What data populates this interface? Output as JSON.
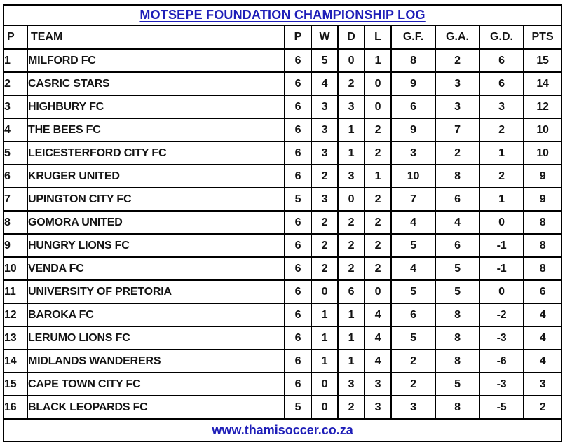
{
  "title": "MOTSEPE FOUNDATION CHAMPIONSHIP LOG",
  "footer": {
    "url_text": "www.thamisoccer.co.za"
  },
  "colors": {
    "accent": "#1e1eb8",
    "border": "#000000",
    "text": "#131313",
    "background": "#ffffff"
  },
  "chart_data": {
    "type": "table",
    "title": "MOTSEPE FOUNDATION CHAMPIONSHIP LOG",
    "columns": [
      "P",
      "TEAM",
      "P",
      "W",
      "D",
      "L",
      "G.F.",
      "G.A.",
      "G.D.",
      "PTS"
    ],
    "column_keys": [
      "pos",
      "team",
      "played",
      "won",
      "drawn",
      "lost",
      "gf",
      "ga",
      "gd",
      "pts"
    ],
    "rows": [
      [
        "1",
        "MILFORD FC",
        "6",
        "5",
        "0",
        "1",
        "8",
        "2",
        "6",
        "15"
      ],
      [
        "2",
        "CASRIC STARS",
        "6",
        "4",
        "2",
        "0",
        "9",
        "3",
        "6",
        "14"
      ],
      [
        "3",
        "HIGHBURY FC",
        "6",
        "3",
        "3",
        "0",
        "6",
        "3",
        "3",
        "12"
      ],
      [
        "4",
        "THE BEES FC",
        "6",
        "3",
        "1",
        "2",
        "9",
        "7",
        "2",
        "10"
      ],
      [
        "5",
        "LEICESTERFORD CITY FC",
        "6",
        "3",
        "1",
        "2",
        "3",
        "2",
        "1",
        "10"
      ],
      [
        "6",
        "KRUGER UNITED",
        "6",
        "2",
        "3",
        "1",
        "10",
        "8",
        "2",
        "9"
      ],
      [
        "7",
        "UPINGTON CITY FC",
        "5",
        "3",
        "0",
        "2",
        "7",
        "6",
        "1",
        "9"
      ],
      [
        "8",
        "GOMORA UNITED",
        "6",
        "2",
        "2",
        "2",
        "4",
        "4",
        "0",
        "8"
      ],
      [
        "9",
        "HUNGRY LIONS FC",
        "6",
        "2",
        "2",
        "2",
        "5",
        "6",
        "-1",
        "8"
      ],
      [
        "10",
        "VENDA FC",
        "6",
        "2",
        "2",
        "2",
        "4",
        "5",
        "-1",
        "8"
      ],
      [
        "11",
        "UNIVERSITY OF PRETORIA",
        "6",
        "0",
        "6",
        "0",
        "5",
        "5",
        "0",
        "6"
      ],
      [
        "12",
        "BAROKA FC",
        "6",
        "1",
        "1",
        "4",
        "6",
        "8",
        "-2",
        "4"
      ],
      [
        "13",
        "LERUMO LIONS FC",
        "6",
        "1",
        "1",
        "4",
        "5",
        "8",
        "-3",
        "4"
      ],
      [
        "14",
        "MIDLANDS WANDERERS",
        "6",
        "1",
        "1",
        "4",
        "2",
        "8",
        "-6",
        "4"
      ],
      [
        "15",
        "CAPE TOWN CITY FC",
        "6",
        "0",
        "3",
        "3",
        "2",
        "5",
        "-3",
        "3"
      ],
      [
        "16",
        "BLACK LEOPARDS FC",
        "5",
        "0",
        "2",
        "3",
        "3",
        "8",
        "-5",
        "2"
      ]
    ]
  }
}
